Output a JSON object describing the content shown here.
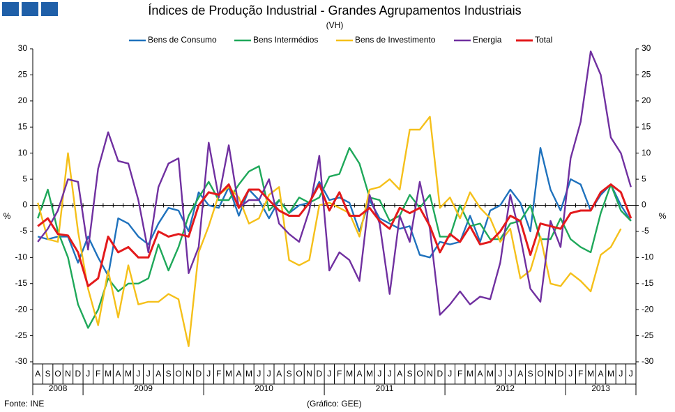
{
  "chart_data": {
    "type": "line",
    "title": "Índices de Produção Industrial - Grandes Agrupamentos  Industriais",
    "subtitle": "(VH)",
    "y_label": "%",
    "source": "Fonte: INE",
    "credit": "(Gráfico:  GEE)",
    "year_groups": [
      {
        "label": "2008",
        "categories": [
          "A",
          "S",
          "O",
          "N",
          "D"
        ]
      },
      {
        "label": "2009",
        "categories": [
          "J",
          "F",
          "M",
          "A",
          "M",
          "J",
          "J",
          "A",
          "S",
          "O",
          "N",
          "D"
        ]
      },
      {
        "label": "2010",
        "categories": [
          "J",
          "F",
          "M",
          "A",
          "M",
          "J",
          "J",
          "A",
          "S",
          "O",
          "N",
          "D"
        ]
      },
      {
        "label": "2011",
        "categories": [
          "J",
          "F",
          "M",
          "A",
          "M",
          "J",
          "J",
          "A",
          "S",
          "O",
          "N",
          "D"
        ]
      },
      {
        "label": "2012",
        "categories": [
          "J",
          "F",
          "M",
          "A",
          "M",
          "J",
          "J",
          "A",
          "S",
          "O",
          "N",
          "D"
        ]
      },
      {
        "label": "2013",
        "categories": [
          "J",
          "F",
          "M",
          "A",
          "M",
          "J",
          "J"
        ]
      }
    ],
    "ylim": [
      -30,
      30
    ],
    "yticks": [
      -30,
      -25,
      -20,
      -15,
      -10,
      -5,
      0,
      5,
      10,
      15,
      20,
      25,
      30
    ],
    "grid": false,
    "series": [
      {
        "name": "Bens de Consumo",
        "color": "#1f72bd",
        "values": [
          -6,
          -6.5,
          -6,
          -6,
          -11,
          -6,
          -10,
          -13.5,
          -2.5,
          -3.5,
          -6,
          -7.5,
          -3.5,
          -0.5,
          -1,
          -5,
          2.5,
          0,
          -0.5,
          3.5,
          -2,
          3,
          1,
          -2.5,
          1,
          -1.5,
          0,
          0.5,
          4.5,
          1,
          1.5,
          0.5,
          -5,
          1,
          -2.5,
          -3.5,
          -4.5,
          -4,
          -9.5,
          -10,
          -7,
          -7.5,
          -7,
          -2,
          -7,
          -1,
          0,
          3,
          0.5,
          -5,
          11,
          3,
          -1,
          5,
          4,
          -1,
          2,
          4,
          0,
          -3
        ]
      },
      {
        "name": "Bens Intermédios",
        "color": "#1fa85a",
        "values": [
          -2.5,
          3,
          -5,
          -10,
          -19,
          -23.5,
          -20,
          -14,
          -16.5,
          -15,
          -15,
          -14,
          -7.5,
          -12.5,
          -8,
          -2,
          1.5,
          4.5,
          1,
          1,
          4,
          6.5,
          7.5,
          -1,
          1,
          -1.5,
          1.5,
          0.5,
          1.5,
          5.5,
          6,
          11,
          8,
          1.5,
          1,
          -3,
          -2,
          2,
          -0.5,
          2,
          -6,
          -6,
          0,
          -4,
          -3.5,
          -6.5,
          -6.5,
          -3.5,
          -3,
          0,
          -6.5,
          -6.5,
          -2.5,
          -6.5,
          -8,
          -9,
          -1.5,
          4,
          -1,
          -3
        ]
      },
      {
        "name": "Bens de Investimento",
        "color": "#f5c01a",
        "values": [
          0.5,
          -6.5,
          -7,
          10,
          -5,
          -16,
          -23,
          -12.5,
          -21.5,
          -11.5,
          -19,
          -18.5,
          -18.5,
          -17,
          -18,
          -27,
          -9,
          -4,
          2,
          3.5,
          1.5,
          -3.5,
          -2.5,
          2,
          3.5,
          -10.5,
          -11.5,
          -10.5,
          0,
          0.5,
          -0.5,
          -1.5,
          -6,
          3,
          3.5,
          5,
          3,
          14.5,
          14.5,
          17,
          -0.5,
          1.5,
          -2.5,
          2.5,
          -0.5,
          -2.5,
          -7,
          -4.5,
          -14,
          -12.5,
          -6,
          -15,
          -15.5,
          -13,
          -14.5,
          -16.5,
          -9.5,
          -8,
          -4.5,
          null
        ]
      },
      {
        "name": "Energia",
        "color": "#7030a0",
        "values": [
          -7,
          -4.5,
          -1,
          5,
          4.5,
          -8.5,
          7,
          14,
          8.5,
          8,
          1,
          -9,
          3.5,
          8,
          9,
          -13,
          -8,
          12,
          1.5,
          11.5,
          -0.5,
          1,
          1,
          5,
          -3.5,
          -5.5,
          -7,
          -1,
          9.5,
          -12.5,
          -9,
          -10.5,
          -14.5,
          2,
          -3.5,
          -17,
          -2,
          -7,
          4.5,
          -4.5,
          -21,
          -19,
          -16.5,
          -19,
          -17.5,
          -18,
          -11,
          2,
          -6,
          -16,
          -18.5,
          -3,
          -8,
          9,
          16,
          29.5,
          25,
          13,
          10,
          3.5
        ]
      },
      {
        "name": "Total",
        "color": "#e31a1c",
        "values": [
          -4,
          -2.5,
          -5.5,
          -5.8,
          -9,
          -15.5,
          -14,
          -6,
          -9,
          -8,
          -10,
          -10,
          -5,
          -6,
          -5.5,
          -6,
          0,
          2.5,
          2,
          4,
          -0.5,
          3,
          3,
          1,
          -1,
          -2,
          -2,
          0.5,
          4,
          -1,
          2.5,
          -2,
          -2,
          -0.5,
          -3,
          -4.5,
          -0.5,
          -1.5,
          -0.5,
          -4,
          -9,
          -5.5,
          -7,
          -4,
          -7.5,
          -7,
          -5,
          -2,
          -3,
          -9.5,
          -3.5,
          -4,
          -4.5,
          -1.5,
          -1,
          -1,
          2.5,
          4,
          2.5,
          -2.5
        ]
      }
    ]
  }
}
